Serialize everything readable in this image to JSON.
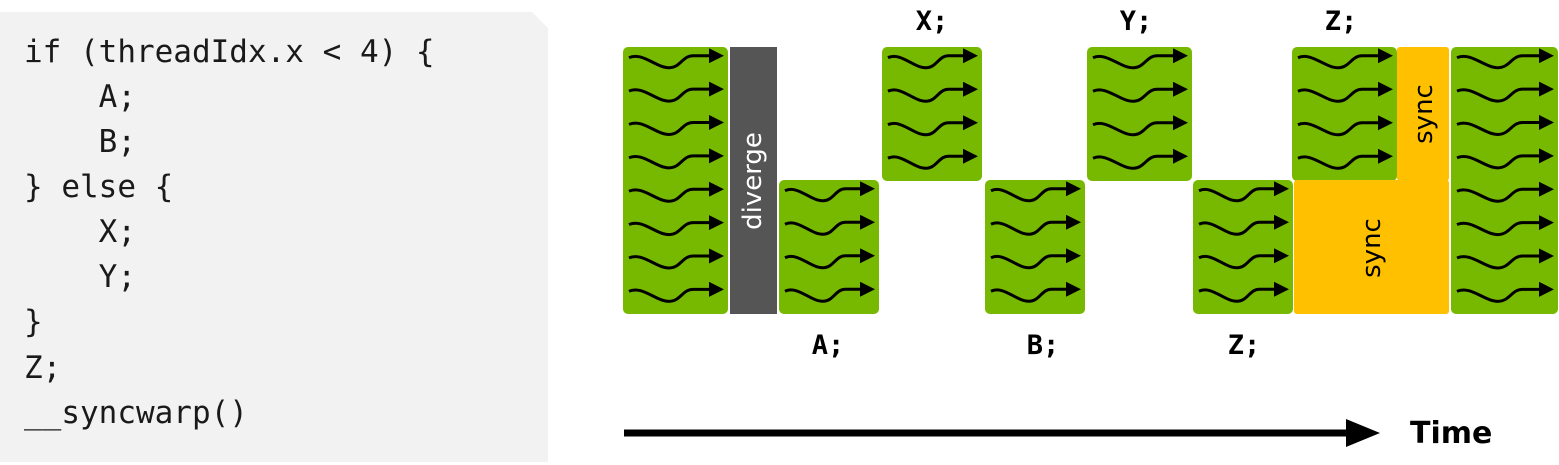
{
  "code": {
    "lines": [
      "if (threadIdx.x < 4) {",
      "    A;",
      "    B;",
      "} else {",
      "    X;",
      "    Y;",
      "}",
      "Z;",
      "__syncwarp()"
    ]
  },
  "diagram": {
    "diverge_label": "diverge",
    "sync_label": "sync",
    "ops_top": [
      "X;",
      "Y;",
      "Z;"
    ],
    "ops_bottom": [
      "A;",
      "B;",
      "Z;"
    ],
    "time_label": "Time",
    "colors": {
      "thread_block": "#76b900",
      "diverge": "#555555",
      "sync": "#ffc000",
      "code_bg": "#f2f2f2"
    },
    "icons": [
      "thread-squiggle-arrow-icon",
      "time-arrow-icon"
    ]
  }
}
